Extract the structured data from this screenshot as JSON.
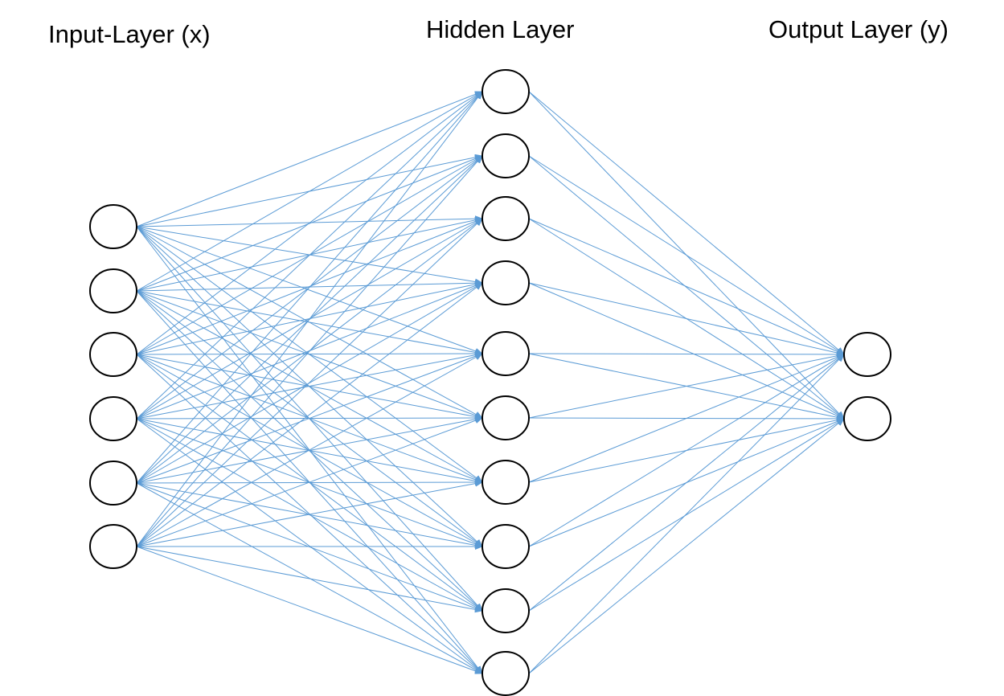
{
  "titles": {
    "input": "Input-Layer (x)",
    "hidden": "Hidden Layer",
    "output": "Output Layer (y)"
  },
  "layers": {
    "input_count": 6,
    "hidden_count": 10,
    "output_count": 2
  },
  "colors": {
    "edge": "#5b9bd5",
    "node_stroke": "#000000",
    "node_fill": "#ffffff",
    "text": "#000000"
  },
  "connectivity": "fully-connected"
}
